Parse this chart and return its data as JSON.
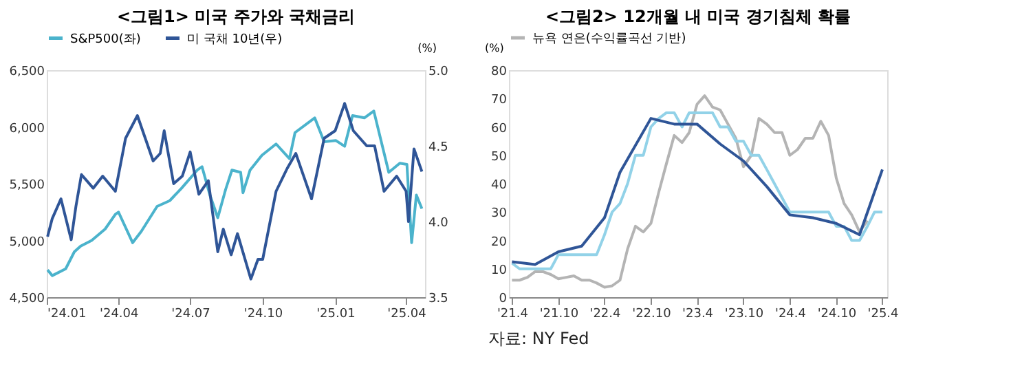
{
  "chart_data": [
    {
      "type": "line",
      "title": "<그림1> 미국 주가와 국채금리",
      "y2label": "(%)",
      "legend": "top",
      "xlim": [
        "2024-01-01",
        "2025-04-25"
      ],
      "xticks": [
        {
          "value": "2024-01-01",
          "label": "'24.01"
        },
        {
          "value": "2024-04-01",
          "label": "'24.04"
        },
        {
          "value": "2024-07-01",
          "label": "'24.07"
        },
        {
          "value": "2024-10-01",
          "label": "'24.10"
        },
        {
          "value": "2025-01-01",
          "label": "'25.01"
        },
        {
          "value": "2025-04-01",
          "label": "'25.04"
        }
      ],
      "ylim": [
        4500,
        6500
      ],
      "yticks": [
        {
          "value": 4500,
          "label": "4,500"
        },
        {
          "value": 5000,
          "label": "5,000"
        },
        {
          "value": 5500,
          "label": "5,500"
        },
        {
          "value": 6000,
          "label": "6,000"
        },
        {
          "value": 6500,
          "label": "6,500"
        }
      ],
      "y2lim": [
        3.5,
        5.0
      ],
      "y2ticks": [
        {
          "value": 3.5,
          "label": "3.5"
        },
        {
          "value": 4,
          "label": "4.0"
        },
        {
          "value": 4.5,
          "label": "4.5"
        },
        {
          "value": 5,
          "label": "5.0"
        }
      ],
      "series": [
        {
          "name": "S&P500(좌)",
          "color": "#4bb3cc",
          "x": [
            "2024-01-02",
            "2024-01-08",
            "2024-01-25",
            "2024-02-05",
            "2024-02-13",
            "2024-02-27",
            "2024-03-15",
            "2024-03-28",
            "2024-04-01",
            "2024-04-19",
            "2024-04-30",
            "2024-05-20",
            "2024-06-05",
            "2024-06-20",
            "2024-07-10",
            "2024-07-16",
            "2024-07-26",
            "2024-08-05",
            "2024-08-15",
            "2024-08-23",
            "2024-09-03",
            "2024-09-06",
            "2024-09-15",
            "2024-09-30",
            "2024-10-18",
            "2024-11-04",
            "2024-11-11",
            "2024-12-06",
            "2024-12-18",
            "2025-01-02",
            "2025-01-13",
            "2025-01-23",
            "2025-02-07",
            "2025-02-19",
            "2025-03-10",
            "2025-03-24",
            "2025-04-02",
            "2025-04-08",
            "2025-04-14",
            "2025-04-21"
          ],
          "values": [
            4740,
            4690,
            4750,
            4900,
            4950,
            5000,
            5100,
            5230,
            5250,
            4980,
            5080,
            5300,
            5350,
            5460,
            5620,
            5650,
            5400,
            5200,
            5450,
            5620,
            5600,
            5420,
            5620,
            5750,
            5850,
            5720,
            5950,
            6080,
            5870,
            5880,
            5830,
            6100,
            6080,
            6140,
            5600,
            5680,
            5670,
            4980,
            5400,
            5280
          ]
        },
        {
          "name": "미 국채 10년(우)",
          "color": "#2f5597",
          "axis": "y2",
          "x": [
            "2024-01-02",
            "2024-01-08",
            "2024-01-19",
            "2024-02-01",
            "2024-02-07",
            "2024-02-14",
            "2024-02-29",
            "2024-03-12",
            "2024-03-28",
            "2024-04-10",
            "2024-04-25",
            "2024-05-15",
            "2024-05-24",
            "2024-05-29",
            "2024-06-10",
            "2024-06-21",
            "2024-07-01",
            "2024-07-12",
            "2024-07-24",
            "2024-08-05",
            "2024-08-12",
            "2024-08-22",
            "2024-08-30",
            "2024-09-16",
            "2024-09-25",
            "2024-10-01",
            "2024-10-18",
            "2024-11-01",
            "2024-11-12",
            "2024-12-02",
            "2024-12-18",
            "2025-01-01",
            "2025-01-13",
            "2025-01-24",
            "2025-02-10",
            "2025-02-20",
            "2025-03-04",
            "2025-03-20",
            "2025-04-01",
            "2025-04-04",
            "2025-04-11",
            "2025-04-21"
          ],
          "values": [
            3.9,
            4.02,
            4.15,
            3.88,
            4.1,
            4.31,
            4.22,
            4.3,
            4.2,
            4.55,
            4.7,
            4.4,
            4.45,
            4.6,
            4.25,
            4.3,
            4.46,
            4.18,
            4.27,
            3.8,
            3.95,
            3.78,
            3.92,
            3.62,
            3.75,
            3.75,
            4.2,
            4.35,
            4.45,
            4.15,
            4.55,
            4.6,
            4.78,
            4.6,
            4.5,
            4.5,
            4.2,
            4.3,
            4.2,
            4.0,
            4.48,
            4.33
          ]
        }
      ]
    },
    {
      "type": "line",
      "title": "<그림2> 12개월 내 미국 경기침체 확률",
      "ylabel": "(%)",
      "legend": "top",
      "annotations": [
        "자료: NY Fed"
      ],
      "xlim": [
        "2021-03-20",
        "2025-04-20"
      ],
      "xticks": [
        {
          "value": "2021-04-01",
          "label": "'21.4"
        },
        {
          "value": "2021-10-01",
          "label": "'21.10"
        },
        {
          "value": "2022-04-01",
          "label": "'22.4"
        },
        {
          "value": "2022-10-01",
          "label": "'22.10"
        },
        {
          "value": "2023-04-01",
          "label": "'23.4"
        },
        {
          "value": "2023-10-01",
          "label": "'23.10"
        },
        {
          "value": "2024-04-01",
          "label": "'24.4"
        },
        {
          "value": "2024-10-01",
          "label": "'24.10"
        },
        {
          "value": "2025-04-01",
          "label": "'25.4"
        }
      ],
      "ylim": [
        0,
        80
      ],
      "yticks": [
        0,
        10,
        20,
        30,
        40,
        50,
        60,
        70,
        80
      ],
      "series": [
        {
          "name": "뉴욕 연은(수익률곡선 기반)",
          "color": "#b4b4b4",
          "x": [
            "2021-04",
            "2021-05",
            "2021-06",
            "2021-07",
            "2021-08",
            "2021-09",
            "2021-10",
            "2021-11",
            "2021-12",
            "2022-01",
            "2022-02",
            "2022-03",
            "2022-04",
            "2022-05",
            "2022-06",
            "2022-07",
            "2022-08",
            "2022-09",
            "2022-10",
            "2022-11",
            "2022-12",
            "2023-01",
            "2023-02",
            "2023-03",
            "2023-04",
            "2023-05",
            "2023-06",
            "2023-07",
            "2023-08",
            "2023-09",
            "2023-10",
            "2023-11",
            "2023-12",
            "2024-01",
            "2024-02",
            "2024-03",
            "2024-04",
            "2024-05",
            "2024-06",
            "2024-07",
            "2024-08",
            "2024-09",
            "2024-10",
            "2024-11",
            "2024-12",
            "2025-01",
            "2025-02"
          ],
          "values": [
            6,
            6,
            7,
            9,
            9,
            8,
            6.5,
            7,
            7.5,
            6,
            6,
            5,
            3.5,
            4,
            6,
            17,
            25,
            23,
            26,
            37,
            47,
            57,
            54.5,
            58,
            68,
            71,
            67,
            66,
            61,
            56,
            46,
            50,
            63,
            61,
            58,
            58,
            50,
            52,
            56,
            56,
            62,
            57,
            42,
            33,
            29,
            23,
            27
          ]
        },
        {
          "color": "#92d2e8",
          "x": [
            "2021-04",
            "2021-05",
            "2021-07",
            "2021-09",
            "2021-10",
            "2022-01",
            "2022-03",
            "2022-04",
            "2022-05",
            "2022-06",
            "2022-07",
            "2022-08",
            "2022-09",
            "2022-10",
            "2022-11",
            "2022-12",
            "2023-01",
            "2023-02",
            "2023-03",
            "2023-04",
            "2023-05",
            "2023-06",
            "2023-07",
            "2023-08",
            "2023-09",
            "2023-10",
            "2023-11",
            "2023-12",
            "2024-01",
            "2024-04",
            "2024-05",
            "2024-09",
            "2024-10",
            "2024-11",
            "2024-12",
            "2025-01",
            "2025-02",
            "2025-03",
            "2025-04"
          ],
          "values": [
            12,
            10,
            10,
            10,
            15,
            15,
            15,
            22,
            30,
            33,
            40,
            50,
            50,
            60,
            63,
            65,
            65,
            60,
            65,
            65,
            65,
            65,
            60,
            60,
            55,
            55,
            50,
            50,
            45,
            30,
            30,
            30,
            25,
            25,
            20,
            20,
            25,
            30,
            30
          ]
        },
        {
          "color": "#2f5597",
          "x": [
            "2021-04",
            "2021-07",
            "2021-10",
            "2022-01",
            "2022-04",
            "2022-06",
            "2022-10",
            "2023-01",
            "2023-04",
            "2023-07",
            "2023-10",
            "2024-01",
            "2024-04",
            "2024-07",
            "2024-10",
            "2025-01",
            "2025-04"
          ],
          "values": [
            12.5,
            11.5,
            16,
            18,
            28,
            44,
            63,
            61,
            61,
            54,
            48,
            39,
            29,
            28,
            26,
            22,
            45
          ]
        }
      ]
    }
  ]
}
